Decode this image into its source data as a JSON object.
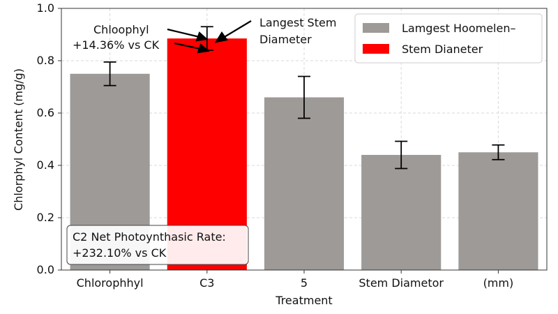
{
  "chart_data": {
    "type": "bar",
    "xlabel": "Treatment",
    "ylabel": "Chlorphyl Content (mg/g)",
    "ylim": [
      0,
      1.0
    ],
    "yticks": [
      "0.0",
      "0.2",
      "0.4",
      "0.6",
      "0.8",
      "1.0"
    ],
    "categories": [
      "Chlorophhyl",
      "C3",
      "5",
      "Stem Diametor",
      "(mm)"
    ],
    "values": [
      0.75,
      0.885,
      0.66,
      0.44,
      0.45
    ],
    "errors": [
      0.045,
      0.045,
      0.08,
      0.052,
      0.028
    ],
    "bar_colors": [
      "#9e9a98",
      "#ff0000",
      "#9e9a98",
      "#9e9a98",
      "#9e9a98"
    ],
    "grid": true,
    "legend": {
      "position": "top-right",
      "entries": [
        {
          "label": "Lamgest Hoomelen–",
          "color": "#9e9a98"
        },
        {
          "label": "Stem Dianeter",
          "color": "#ff0000"
        }
      ]
    },
    "annotations": {
      "top_left_line1": "Chloophyl",
      "top_left_line2": "+14.36% vs CK",
      "top_right_line1": "Langest Stem",
      "top_right_line2": "Diameter",
      "box_line1": "C2 Net Photoynthasic Rate:",
      "box_line2": "+232.10% vs CK"
    }
  }
}
